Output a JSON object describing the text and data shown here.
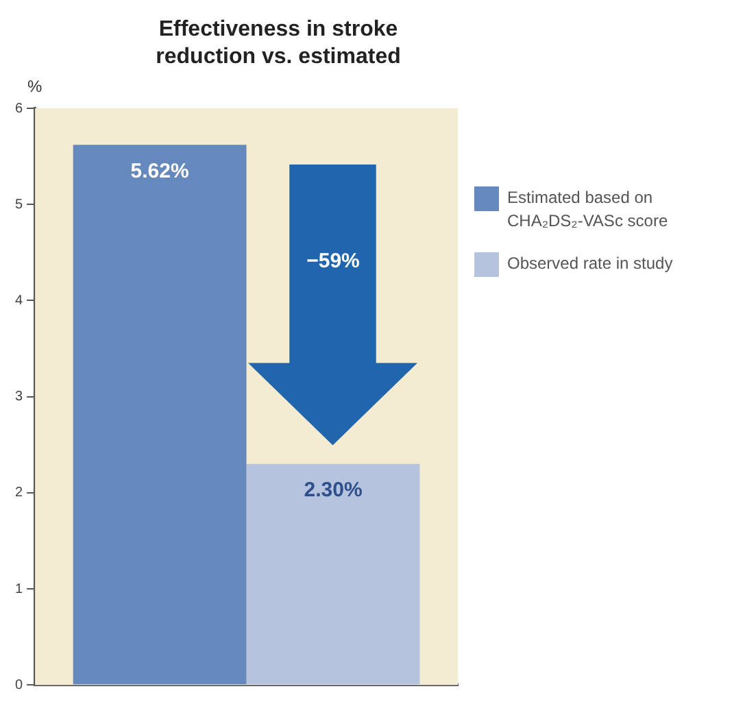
{
  "chart_data": {
    "type": "bar",
    "title": "Effectiveness in stroke reduction vs. estimated",
    "ylabel": "%",
    "categories": [
      null
    ],
    "series": [
      {
        "name": "Estimated based on CHA₂DS₂-VASc score",
        "color": "#6689bd",
        "values": [
          5.62
        ],
        "value_labels": [
          "5.62%"
        ]
      },
      {
        "name": "Observed rate in study",
        "color": "#b5c3de",
        "values": [
          2.3
        ],
        "value_labels": [
          "2.30%"
        ]
      }
    ],
    "ylim": [
      0,
      6
    ],
    "yticks": [
      0,
      1,
      2,
      3,
      4,
      5,
      6
    ],
    "bands": [
      {
        "axis": "y",
        "from": 0,
        "to": 6,
        "color": "#f4ecd2"
      }
    ],
    "grid": false,
    "legend": "right",
    "annotations": [
      "−59%"
    ]
  }
}
